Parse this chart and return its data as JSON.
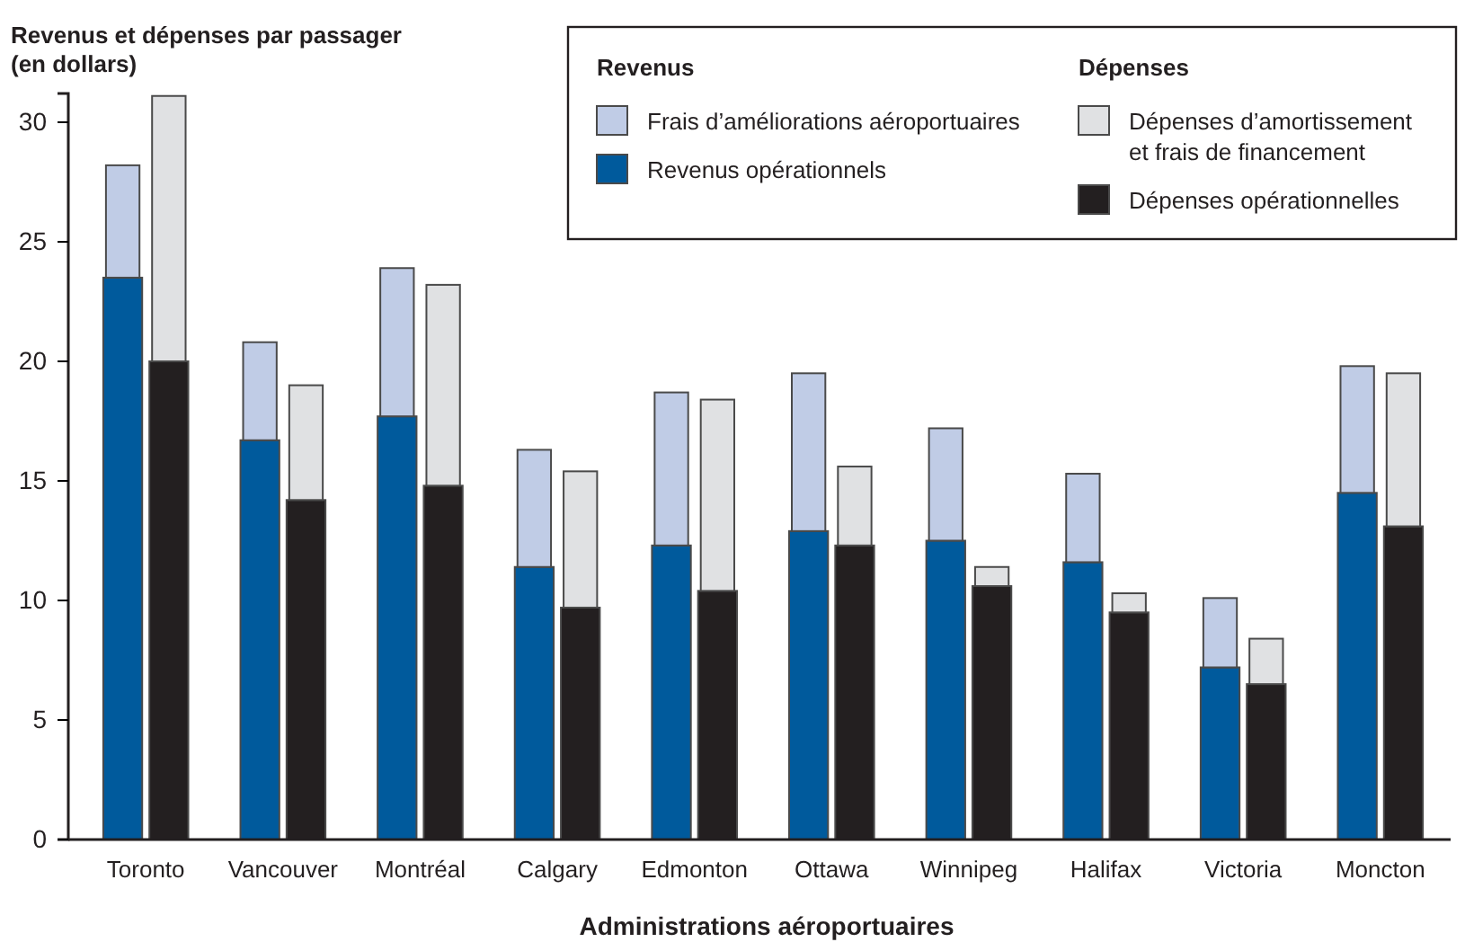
{
  "chart_data": {
    "type": "bar",
    "ylabel": "Revenus et dépenses par passager (en dollars)",
    "xlabel": "Administrations aéroportuaires",
    "categories": [
      "Toronto",
      "Vancouver",
      "Montréal",
      "Calgary",
      "Edmonton",
      "Ottawa",
      "Winnipeg",
      "Halifax",
      "Victoria",
      "Moncton"
    ],
    "series": [
      {
        "name": "Revenus opérationnels",
        "color": "#005a9c",
        "values": [
          23.5,
          16.7,
          17.7,
          11.4,
          12.3,
          12.9,
          12.5,
          11.6,
          7.2,
          14.5
        ]
      },
      {
        "name": "Frais d’améliorations aéroportuaires",
        "color": "#c0cce6",
        "base": [
          23.5,
          16.7,
          17.7,
          11.4,
          12.3,
          12.9,
          12.5,
          11.6,
          7.2,
          14.5
        ],
        "values": [
          4.7,
          4.1,
          6.2,
          4.9,
          6.4,
          6.6,
          4.7,
          3.7,
          2.9,
          5.3
        ]
      },
      {
        "name": "Dépenses opérationnelles",
        "color": "#231f20",
        "values": [
          20.0,
          14.2,
          14.8,
          9.7,
          10.4,
          12.3,
          10.6,
          9.5,
          6.5,
          13.1
        ]
      },
      {
        "name": "Dépenses d’amortissement et frais de financement",
        "color": "#e0e1e3",
        "base": [
          20.0,
          14.2,
          14.8,
          9.7,
          10.4,
          12.3,
          10.6,
          9.5,
          6.5,
          13.1
        ],
        "values": [
          11.1,
          4.8,
          8.4,
          5.7,
          8.0,
          3.3,
          0.8,
          0.8,
          1.9,
          6.4
        ]
      }
    ],
    "annotations": [
      "Revenus",
      "Dépenses"
    ],
    "ylim": [
      0,
      31.2
    ],
    "yticks": [
      0,
      5,
      10,
      15,
      20,
      25,
      30
    ],
    "legend": "top right",
    "grid": false
  }
}
